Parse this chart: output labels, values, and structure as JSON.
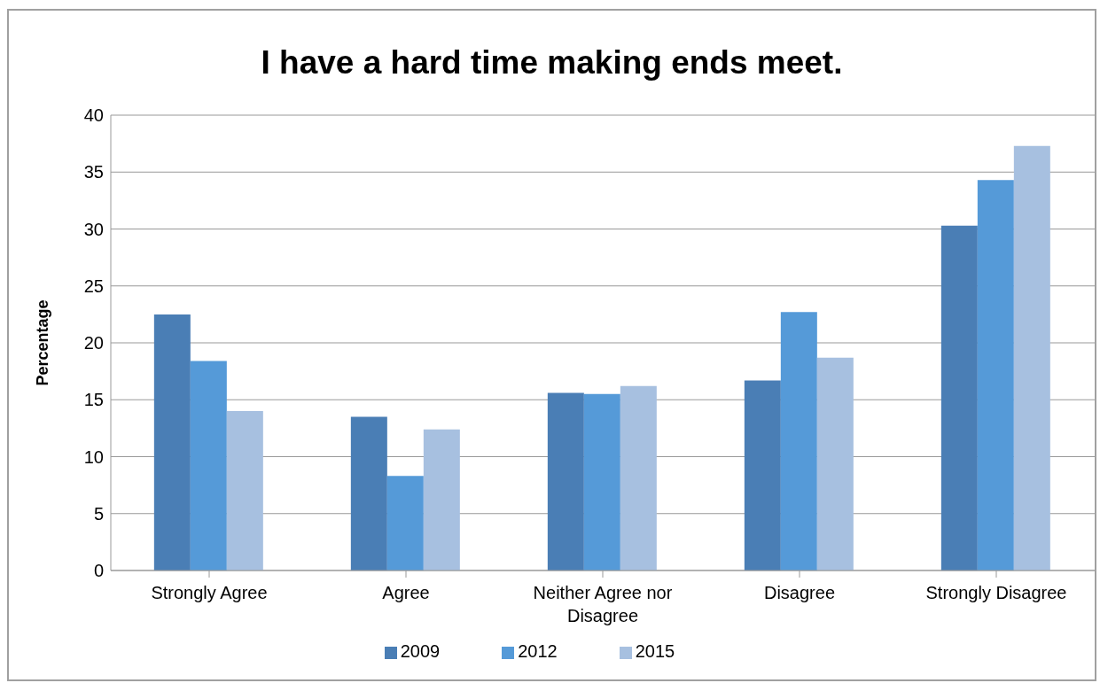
{
  "chart_data": {
    "type": "bar",
    "title": "I have a hard time making ends meet.",
    "ylabel": "Percentage",
    "categories": [
      "Strongly Agree",
      "Agree",
      "Neither Agree nor Disagree",
      "Disagree",
      "Strongly Disagree"
    ],
    "series": [
      {
        "name": "2009",
        "color": "#4a7eb5",
        "values": [
          22.5,
          13.5,
          15.6,
          16.7,
          30.3
        ]
      },
      {
        "name": "2012",
        "color": "#559ad8",
        "values": [
          18.4,
          8.3,
          15.5,
          22.7,
          34.3
        ]
      },
      {
        "name": "2015",
        "color": "#a7c0e0",
        "values": [
          14.0,
          12.4,
          16.2,
          18.7,
          37.3
        ]
      }
    ],
    "ylim": [
      0,
      40
    ],
    "yticks": [
      0,
      5,
      10,
      15,
      20,
      25,
      30,
      35,
      40
    ],
    "grid": "y",
    "legend": "bottom"
  }
}
